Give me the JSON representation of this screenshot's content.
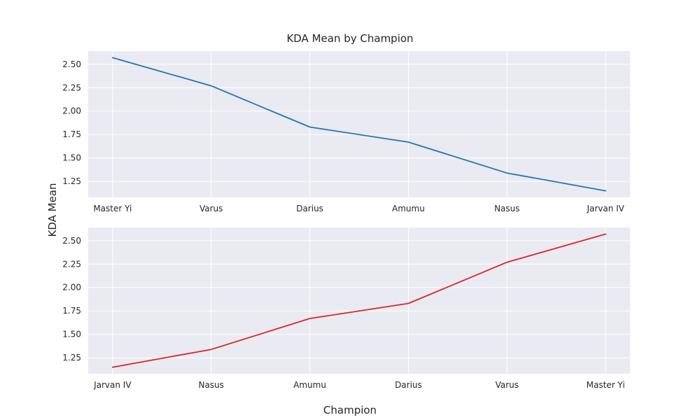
{
  "chart_data": {
    "title": "KDA Mean by Champion",
    "xlabel": "Champion",
    "ylabel": "KDA Mean",
    "style": {
      "background": "#ffffff",
      "panel_color": "#eaeaf2",
      "grid_color": "#ffffff",
      "grid": true
    },
    "panels": [
      {
        "type": "line",
        "color": "#1f77b4",
        "categories": [
          "Master Yi",
          "Varus",
          "Darius",
          "Amumu",
          "Nasus",
          "Jarvan IV"
        ],
        "values": [
          2.57,
          2.27,
          1.83,
          1.67,
          1.34,
          1.15
        ],
        "yticks": [
          "1.25",
          "1.50",
          "1.75",
          "2.00",
          "2.25",
          "2.50"
        ],
        "ylim": [
          1.08,
          2.64
        ]
      },
      {
        "type": "line",
        "color": "#d62728",
        "categories": [
          "Jarvan IV",
          "Nasus",
          "Amumu",
          "Darius",
          "Varus",
          "Master Yi"
        ],
        "values": [
          1.15,
          1.34,
          1.67,
          1.83,
          2.27,
          2.57
        ],
        "yticks": [
          "1.25",
          "1.50",
          "1.75",
          "2.00",
          "2.25",
          "2.50"
        ],
        "ylim": [
          1.08,
          2.64
        ]
      }
    ]
  }
}
